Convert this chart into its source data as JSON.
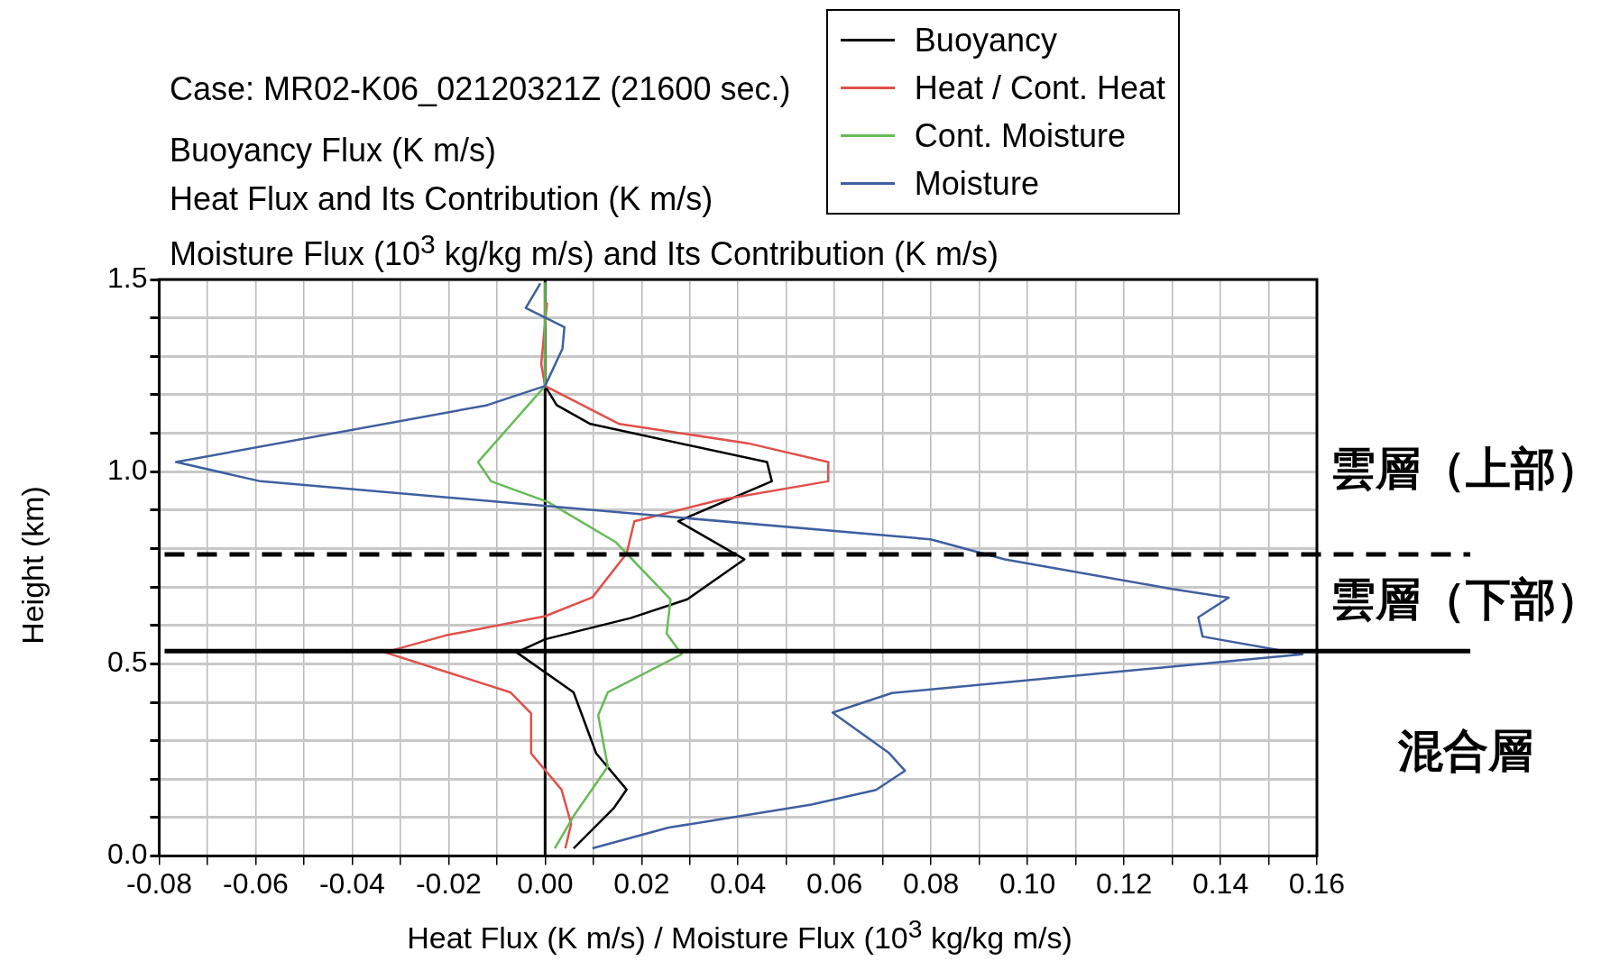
{
  "chart_data": {
    "type": "line",
    "title": "Case: MR02-K06_02120321Z (21600 sec.)",
    "subtitle": "Buoyancy Flux (K m/s)\nHeat Flux and Its Contribution (K m/s)\nMoisture Flux (10$^{3}$ kg/kg m/s) and Its Contribution (K m/s)",
    "xlabel": "Heat Flux (K m/s) / Moisture Flux (10$^{3}$ kg/kg m/s)",
    "ylabel": "Height (km)",
    "xlim": [
      -0.08,
      0.16
    ],
    "ylim": [
      0,
      1.5
    ],
    "xticks": [
      -0.08,
      {
        "value": -0.07,
        "label": null
      },
      -0.06,
      {
        "value": -0.05,
        "label": null
      },
      -0.04,
      {
        "value": -0.03,
        "label": null
      },
      -0.02,
      {
        "value": -0.01,
        "label": null
      },
      {
        "value": 0,
        "label": "0.00"
      },
      {
        "value": 0.01,
        "label": null
      },
      0.02,
      {
        "value": 0.03,
        "label": null
      },
      0.04,
      {
        "value": 0.05,
        "label": null
      },
      0.06,
      {
        "value": 0.07,
        "label": null
      },
      0.08,
      {
        "value": 0.09,
        "label": null
      },
      {
        "value": 0.1,
        "label": "0.10"
      },
      {
        "value": 0.11,
        "label": null
      },
      0.12,
      {
        "value": 0.13,
        "label": null
      },
      0.14,
      {
        "value": 0.15,
        "label": null
      },
      0.16
    ],
    "yticks": [
      {
        "value": 0,
        "label": "0.0"
      },
      {
        "value": 0.1,
        "label": null
      },
      {
        "value": 0.2,
        "label": null
      },
      {
        "value": 0.3,
        "label": null
      },
      {
        "value": 0.4,
        "label": null
      },
      0.5,
      {
        "value": 0.6,
        "label": null
      },
      {
        "value": 0.7,
        "label": null
      },
      {
        "value": 0.8,
        "label": null
      },
      {
        "value": 0.9,
        "label": null
      },
      {
        "value": 1,
        "label": "1.0"
      },
      {
        "value": 1.1,
        "label": null
      },
      {
        "value": 1.2,
        "label": null
      },
      {
        "value": 1.3,
        "label": null
      },
      {
        "value": 1.4,
        "label": null
      },
      1.5
    ],
    "grid": true,
    "legend": "top right",
    "marker": "none",
    "line_style": "solid",
    "series": [
      {
        "name": "Buoyancy",
        "color": "#000000",
        "x": [
          0,
          0,
          0.0024,
          0.0094,
          0.046,
          0.047,
          0.0276,
          0.0413,
          0.0295,
          0.0177,
          0,
          -0.0059,
          0.0059,
          0.0106,
          0.0169,
          0.0142,
          0.0059
        ],
        "values": [
          1.49,
          1.223,
          1.173,
          1.124,
          1.025,
          0.975,
          0.871,
          0.772,
          0.668,
          0.619,
          0.564,
          0.53,
          0.426,
          0.267,
          0.173,
          0.124,
          0.02
        ]
      },
      {
        "name": "Heat / Cont. Heat",
        "color": "#e0504a",
        "x": [
          0.0004,
          -0.0008,
          0,
          0.0154,
          0.042,
          0.0587,
          0.0587,
          0.036,
          0.0185,
          0.0169,
          0.0098,
          0,
          -0.0206,
          -0.0332,
          -0.0072,
          -0.0029,
          -0.0029,
          0.0034,
          0.0054,
          0.0042
        ],
        "values": [
          1.44,
          1.28,
          1.223,
          1.124,
          1.074,
          1.025,
          0.975,
          0.926,
          0.871,
          0.787,
          0.673,
          0.624,
          0.574,
          0.53,
          0.426,
          0.371,
          0.267,
          0.173,
          0.084,
          0.02
        ]
      },
      {
        "name": "Cont. Moisture",
        "color": "#66bb55",
        "x": [
          0,
          0,
          -0.0139,
          -0.0112,
          0.0006,
          0.0146,
          0.026,
          0.0252,
          0.0283,
          0.013,
          0.011,
          0.013,
          0.0059,
          0.002
        ],
        "values": [
          1.49,
          1.223,
          1.025,
          0.975,
          0.921,
          0.817,
          0.668,
          0.579,
          0.525,
          0.426,
          0.366,
          0.233,
          0.104,
          0.02
        ]
      },
      {
        "name": "Moisture",
        "color": "#3f5fa0",
        "x": [
          -0.001,
          -0.004,
          0.004,
          0.0036,
          0,
          -0.012,
          -0.0765,
          -0.059,
          0.0799,
          0.0953,
          0.129,
          0.1417,
          0.1354,
          0.1363,
          0.157,
          0.0719,
          0.0596,
          0.0713,
          0.0746,
          0.0686,
          0.0552,
          0.0256,
          0.0098
        ],
        "values": [
          1.49,
          1.426,
          1.376,
          1.32,
          1.223,
          1.173,
          1.025,
          0.975,
          0.824,
          0.772,
          0.697,
          0.672,
          0.621,
          0.571,
          0.525,
          0.424,
          0.373,
          0.268,
          0.222,
          0.172,
          0.134,
          0.074,
          0.02
        ]
      }
    ],
    "ref_lines": [
      {
        "axis": "y",
        "value": 0.785,
        "line_style": "dashed"
      },
      {
        "axis": "y",
        "value": 0.533,
        "line_style": "solid"
      },
      {
        "axis": "x",
        "value": 0,
        "line_style": "solid"
      }
    ],
    "annotations": [
      "雲層（上部）",
      "雲層（下部）",
      "混合層"
    ]
  }
}
